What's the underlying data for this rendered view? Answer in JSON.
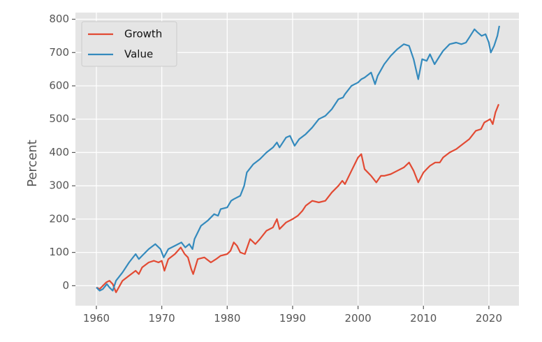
{
  "chart_data": {
    "type": "line",
    "title": "",
    "xlabel": "",
    "ylabel": "Percent",
    "xlim": [
      1956.8,
      2024.6
    ],
    "ylim": [
      -60,
      820
    ],
    "xticks": [
      1960,
      1970,
      1980,
      1990,
      2000,
      2010,
      2020
    ],
    "yticks": [
      0,
      100,
      200,
      300,
      400,
      500,
      600,
      700,
      800
    ],
    "grid": true,
    "legend": "top-left",
    "background": "#e5e5e5",
    "series": [
      {
        "name": "Growth",
        "color": "#e24a33",
        "x": [
          1960.0,
          1960.5,
          1961.0,
          1961.5,
          1962.0,
          1962.5,
          1963.0,
          1964.0,
          1965.0,
          1966.0,
          1966.5,
          1967.0,
          1968.0,
          1968.8,
          1969.5,
          1970.0,
          1970.4,
          1971.0,
          1972.0,
          1972.9,
          1973.5,
          1974.0,
          1974.5,
          1974.8,
          1975.5,
          1976.5,
          1977.5,
          1978.3,
          1979.0,
          1980.0,
          1980.5,
          1981.0,
          1981.5,
          1982.0,
          1982.7,
          1983.5,
          1984.3,
          1985.0,
          1986.0,
          1987.0,
          1987.6,
          1988.0,
          1989.0,
          1990.0,
          1990.8,
          1991.5,
          1992.0,
          1993.0,
          1994.0,
          1995.0,
          1996.0,
          1997.0,
          1997.6,
          1998.0,
          1999.0,
          2000.0,
          2000.5,
          2001.0,
          2002.0,
          2002.8,
          2003.5,
          2004.0,
          2005.0,
          2006.0,
          2007.0,
          2007.8,
          2008.5,
          2009.2,
          2010.0,
          2010.5,
          2011.0,
          2011.8,
          2012.5,
          2013.0,
          2014.0,
          2015.0,
          2016.0,
          2017.0,
          2018.0,
          2018.8,
          2019.3,
          2020.2,
          2020.6,
          2021.0,
          2021.5
        ],
        "values": [
          -5,
          -10,
          0,
          10,
          15,
          5,
          -20,
          15,
          30,
          45,
          35,
          55,
          70,
          75,
          70,
          75,
          45,
          80,
          95,
          115,
          95,
          85,
          50,
          35,
          80,
          85,
          70,
          80,
          90,
          95,
          105,
          130,
          120,
          100,
          95,
          140,
          125,
          140,
          165,
          175,
          200,
          170,
          190,
          200,
          210,
          225,
          240,
          255,
          250,
          255,
          280,
          300,
          315,
          305,
          345,
          385,
          395,
          350,
          330,
          310,
          330,
          330,
          335,
          345,
          355,
          370,
          345,
          310,
          340,
          350,
          360,
          370,
          370,
          385,
          400,
          410,
          425,
          440,
          465,
          470,
          490,
          500,
          485,
          520,
          545
        ]
      },
      {
        "name": "Value",
        "color": "#348abd",
        "x": [
          1960.0,
          1960.5,
          1961.0,
          1961.6,
          1962.0,
          1962.5,
          1963.0,
          1964.0,
          1965.0,
          1966.0,
          1966.5,
          1967.0,
          1968.0,
          1969.0,
          1969.8,
          1970.3,
          1971.0,
          1972.0,
          1973.0,
          1973.6,
          1974.2,
          1974.7,
          1975.0,
          1976.0,
          1977.0,
          1978.0,
          1978.6,
          1979.0,
          1980.0,
          1980.6,
          1981.0,
          1982.0,
          1982.6,
          1983.0,
          1984.0,
          1985.0,
          1986.0,
          1987.0,
          1987.6,
          1988.0,
          1989.0,
          1989.6,
          1990.3,
          1991.0,
          1992.0,
          1993.0,
          1994.0,
          1995.0,
          1996.0,
          1997.0,
          1997.7,
          1998.0,
          1999.0,
          2000.0,
          2000.5,
          2001.0,
          2002.0,
          2002.6,
          2003.0,
          2004.0,
          2005.0,
          2006.0,
          2007.0,
          2007.8,
          2008.5,
          2009.2,
          2009.8,
          2010.5,
          2011.0,
          2011.7,
          2012.5,
          2013.0,
          2014.0,
          2015.0,
          2015.8,
          2016.5,
          2017.0,
          2017.8,
          2018.3,
          2018.9,
          2019.5,
          2020.0,
          2020.3,
          2020.8,
          2021.3,
          2021.6
        ],
        "values": [
          -5,
          -15,
          -10,
          5,
          -5,
          -15,
          15,
          40,
          70,
          95,
          80,
          90,
          110,
          125,
          110,
          85,
          110,
          120,
          130,
          115,
          125,
          110,
          140,
          180,
          195,
          215,
          210,
          230,
          235,
          255,
          260,
          270,
          300,
          340,
          365,
          380,
          400,
          415,
          430,
          415,
          445,
          450,
          420,
          440,
          455,
          475,
          500,
          510,
          530,
          560,
          565,
          575,
          600,
          610,
          620,
          625,
          640,
          605,
          630,
          665,
          690,
          710,
          725,
          720,
          680,
          620,
          680,
          675,
          695,
          665,
          690,
          705,
          725,
          730,
          725,
          730,
          745,
          770,
          760,
          750,
          755,
          730,
          700,
          720,
          750,
          780
        ]
      }
    ]
  }
}
